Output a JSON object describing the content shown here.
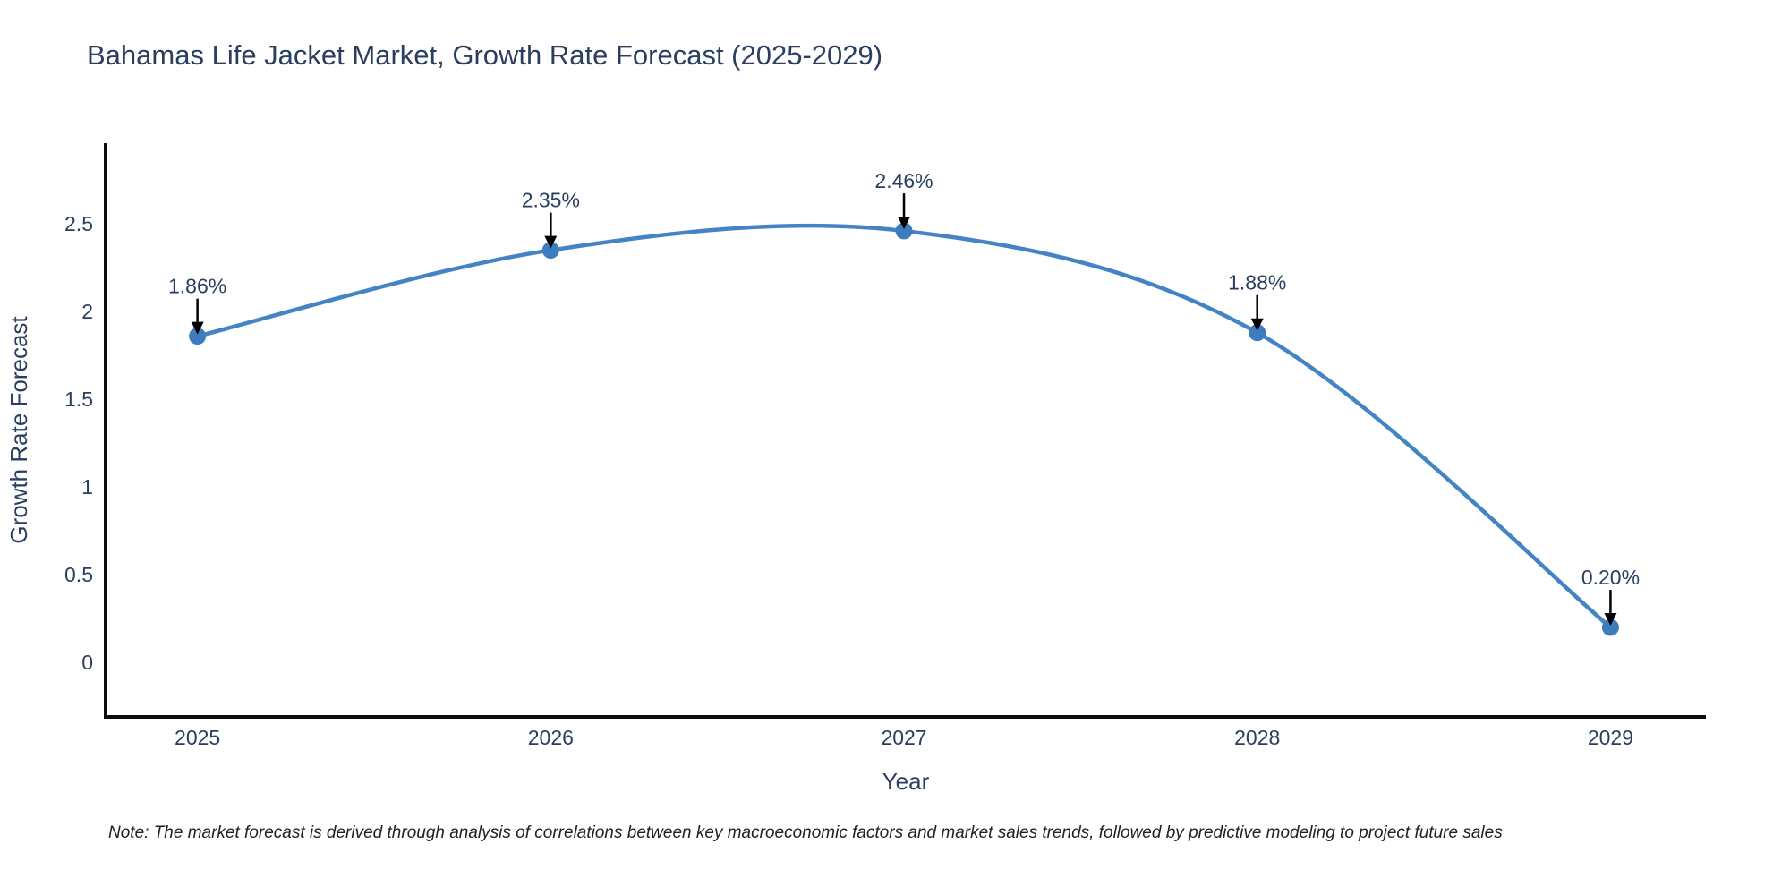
{
  "title": "Bahamas Life Jacket Market, Growth Rate Forecast (2025-2029)",
  "note": "Note: The market forecast is derived through analysis of correlations between key macroeconomic factors and market sales trends, followed by predictive modeling to project future sales",
  "chart_data": {
    "type": "line",
    "title": "Bahamas Life Jacket Market, Growth Rate Forecast (2025-2029)",
    "xlabel": "Year",
    "ylabel": "Growth Rate Forecast",
    "x": [
      2025,
      2026,
      2027,
      2028,
      2029
    ],
    "y": [
      1.86,
      2.35,
      2.46,
      1.88,
      0.2
    ],
    "point_labels": [
      "1.86%",
      "2.35%",
      "2.46%",
      "1.88%",
      "0.20%"
    ],
    "xtick_labels": [
      "2025",
      "2026",
      "2027",
      "2028",
      "2029"
    ],
    "ytick_values": [
      0,
      0.5,
      1,
      1.5,
      2,
      2.5
    ],
    "ytick_labels": [
      "0",
      "0.5",
      "1",
      "1.5",
      "2",
      "2.5"
    ],
    "xlim": [
      2024.74,
      2029.27
    ],
    "ylim": [
      -0.31,
      2.96
    ],
    "grid": false,
    "legend": false,
    "line_shape": "spline",
    "colors": {
      "line": "#4484c4",
      "marker": "#3d7cbd",
      "axis": "#0d0d0d",
      "text": "#2a3f5f",
      "annotation_arrow": "#000000",
      "note_text": "#222222"
    }
  }
}
